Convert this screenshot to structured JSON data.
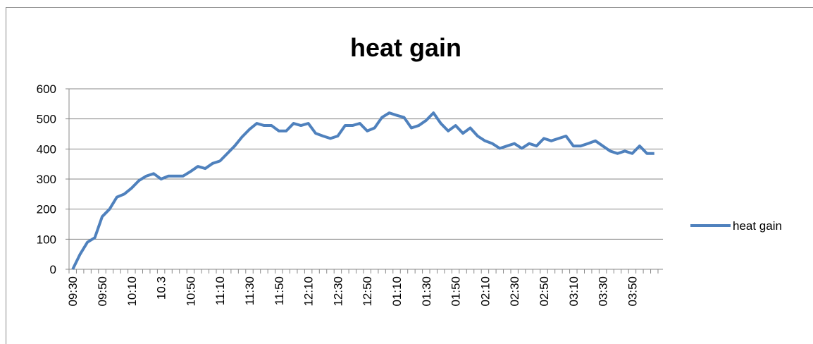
{
  "chart_data": {
    "type": "line",
    "title": "heat gain",
    "categories": [
      "09:30",
      null,
      null,
      null,
      "09:50",
      null,
      null,
      null,
      "10:10",
      null,
      null,
      null,
      "10.3",
      null,
      null,
      null,
      "10:50",
      null,
      null,
      null,
      "11:10",
      null,
      null,
      null,
      "11:30",
      null,
      null,
      null,
      "11:50",
      null,
      null,
      null,
      "12:10",
      null,
      null,
      null,
      "12:30",
      null,
      null,
      null,
      "12:50",
      null,
      null,
      null,
      "01:10",
      null,
      null,
      null,
      "01:30",
      null,
      null,
      null,
      "01:50",
      null,
      null,
      null,
      "02:10",
      null,
      null,
      null,
      "02:30",
      null,
      null,
      null,
      "02:50",
      null,
      null,
      null,
      "03:10",
      null,
      null,
      null,
      "03:30",
      null,
      null,
      null,
      "03:50",
      null,
      null,
      null
    ],
    "series": [
      {
        "name": "heat gain",
        "color": "#4f81bd",
        "values": [
          0,
          50,
          90,
          105,
          175,
          200,
          240,
          250,
          270,
          295,
          310,
          318,
          300,
          310,
          310,
          310,
          325,
          342,
          335,
          352,
          360,
          385,
          410,
          440,
          465,
          485,
          478,
          478,
          460,
          460,
          485,
          478,
          485,
          452,
          443,
          435,
          443,
          478,
          478,
          485,
          460,
          470,
          505,
          520,
          512,
          505,
          470,
          478,
          495,
          520,
          485,
          460,
          478,
          452,
          470,
          443,
          427,
          418,
          402,
          410,
          418,
          402,
          418,
          410,
          435,
          427,
          435,
          443,
          410,
          410,
          418,
          427,
          410,
          393,
          385,
          393,
          385,
          410,
          385,
          385
        ]
      }
    ],
    "ylim": [
      0,
      600
    ],
    "yticks": [
      0,
      100,
      200,
      300,
      400,
      500,
      600
    ],
    "grid": true,
    "legend": "right"
  }
}
